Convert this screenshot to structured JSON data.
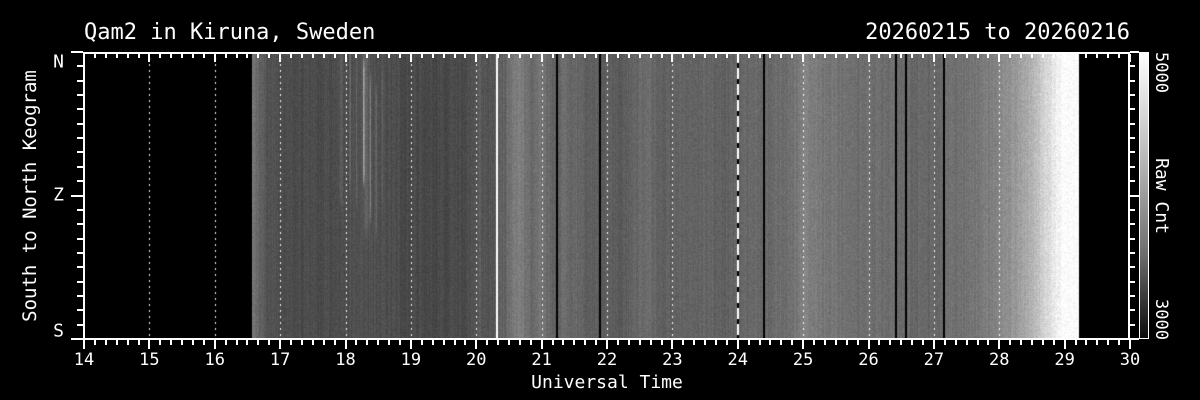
{
  "figure": {
    "title": "Qam2 in Kiruna, Sweden",
    "date_range": "20260215 to 20260216",
    "background_color": "#000000",
    "foreground_color": "#ffffff"
  },
  "axes": {
    "x_label": "Universal Time",
    "y_label": "South to North Keogram",
    "x_tick_labels": [
      "14",
      "15",
      "16",
      "17",
      "18",
      "19",
      "20",
      "21",
      "22",
      "23",
      "24",
      "25",
      "26",
      "27",
      "28",
      "29",
      "30"
    ],
    "y_tick_labels": [
      "N",
      "Z",
      "S"
    ],
    "x_range": [
      14,
      30
    ]
  },
  "colorbar": {
    "label": "Raw Cnt",
    "max_label": "5000",
    "min_label": "3000"
  },
  "chart_data": {
    "type": "heatmap",
    "title": "Qam2 in Kiruna, Sweden",
    "xlabel": "Universal Time",
    "ylabel": "South to North Keogram",
    "x_range": [
      14,
      30
    ],
    "x_tick_interval_hours": 1,
    "y_categories": [
      "N",
      "Z",
      "S"
    ],
    "value_scale": {
      "label": "Raw Cnt",
      "min": 3000,
      "max": 5000,
      "colormap": "grayscale"
    },
    "data_start_hour": 16.57,
    "data_end_hour": 29.22,
    "grid_dotted_hours": [
      15,
      16,
      17,
      18,
      19,
      20,
      21,
      22,
      23,
      25,
      26,
      27,
      28,
      29
    ],
    "midnight_dashed_line_hour": 24.0,
    "bright_white_line_hour": 20.32,
    "data_gap_lines_hours": [
      21.24,
      21.89,
      24.4,
      26.42,
      26.57,
      27.15
    ],
    "brightness_envelope": [
      [
        16.57,
        0.5
      ],
      [
        16.63,
        0.42
      ],
      [
        16.8,
        0.33
      ],
      [
        17.1,
        0.3
      ],
      [
        17.6,
        0.29
      ],
      [
        17.95,
        0.31
      ],
      [
        18.55,
        0.31
      ],
      [
        19.0,
        0.29
      ],
      [
        19.55,
        0.28
      ],
      [
        19.95,
        0.31
      ],
      [
        20.05,
        0.36
      ],
      [
        20.15,
        0.33
      ],
      [
        20.28,
        0.34
      ],
      [
        20.45,
        0.4
      ],
      [
        20.55,
        0.47
      ],
      [
        20.68,
        0.5
      ],
      [
        20.78,
        0.44
      ],
      [
        20.88,
        0.41
      ],
      [
        20.97,
        0.45
      ],
      [
        21.08,
        0.42
      ],
      [
        21.18,
        0.38
      ],
      [
        21.35,
        0.42
      ],
      [
        21.55,
        0.4
      ],
      [
        21.75,
        0.37
      ],
      [
        22.0,
        0.36
      ],
      [
        22.25,
        0.36
      ],
      [
        22.45,
        0.4
      ],
      [
        22.6,
        0.43
      ],
      [
        22.8,
        0.38
      ],
      [
        23.0,
        0.37
      ],
      [
        23.12,
        0.4
      ],
      [
        23.3,
        0.38
      ],
      [
        23.5,
        0.4
      ],
      [
        23.7,
        0.38
      ],
      [
        23.95,
        0.38
      ],
      [
        24.15,
        0.41
      ],
      [
        24.32,
        0.42
      ],
      [
        24.48,
        0.4
      ],
      [
        24.62,
        0.43
      ],
      [
        24.75,
        0.42
      ],
      [
        24.92,
        0.47
      ],
      [
        25.05,
        0.52
      ],
      [
        25.2,
        0.48
      ],
      [
        25.45,
        0.46
      ],
      [
        25.62,
        0.44
      ],
      [
        25.82,
        0.42
      ],
      [
        26.02,
        0.44
      ],
      [
        26.22,
        0.43
      ],
      [
        26.45,
        0.42
      ],
      [
        26.7,
        0.41
      ],
      [
        26.9,
        0.4
      ],
      [
        27.1,
        0.41
      ],
      [
        27.3,
        0.44
      ],
      [
        27.6,
        0.46
      ],
      [
        27.9,
        0.5
      ],
      [
        28.1,
        0.55
      ],
      [
        28.35,
        0.63
      ],
      [
        28.55,
        0.73
      ],
      [
        28.72,
        0.84
      ],
      [
        28.88,
        0.95
      ],
      [
        29.0,
        1.0
      ],
      [
        29.22,
        1.0
      ]
    ],
    "aurora_streaks": [
      {
        "t": 17.93,
        "w": 0.04,
        "amp": 0.07,
        "y0": 0.0,
        "y1": 0.5
      },
      {
        "t": 18.07,
        "w": 0.02,
        "amp": 0.11,
        "y0": 0.0,
        "y1": 0.45
      },
      {
        "t": 18.17,
        "w": 0.015,
        "amp": 0.1,
        "y0": 0.05,
        "y1": 0.5
      },
      {
        "t": 18.28,
        "w": 0.02,
        "amp": 0.4,
        "y0": 0.06,
        "y1": 0.42
      },
      {
        "t": 18.32,
        "w": 0.07,
        "amp": 0.08,
        "y0": 0.0,
        "y1": 0.6
      },
      {
        "t": 18.38,
        "w": 0.015,
        "amp": 0.22,
        "y0": 0.12,
        "y1": 0.55
      },
      {
        "t": 18.47,
        "w": 0.015,
        "amp": 0.16,
        "y0": 0.15,
        "y1": 0.6
      },
      {
        "t": 18.56,
        "w": 0.012,
        "amp": 0.1,
        "y0": 0.1,
        "y1": 0.5
      }
    ],
    "noise": {
      "pixel": 0.1,
      "column": 0.05,
      "seed": 987654321
    }
  }
}
